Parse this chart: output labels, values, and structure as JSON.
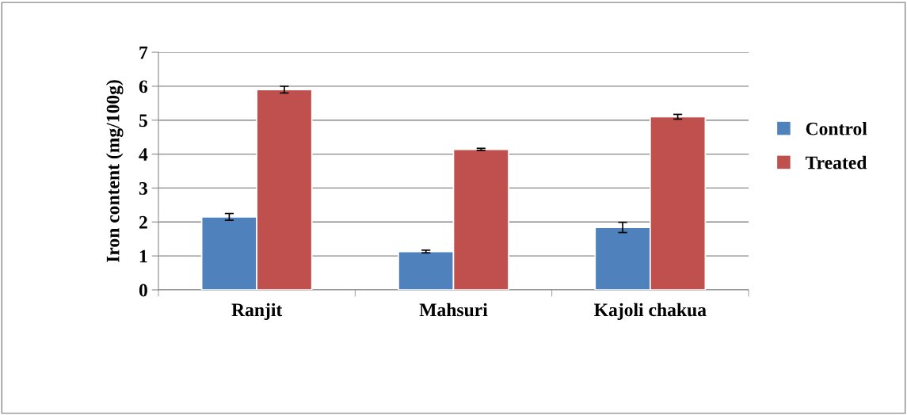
{
  "chart_data": {
    "type": "bar",
    "ylabel": "Iron content (mg/100g)",
    "categories": [
      "Ranjit",
      "Mahsuri",
      "Kajoli chakua"
    ],
    "series": [
      {
        "name": "Control",
        "color": "#4f81bd",
        "values": [
          2.15,
          1.13,
          1.84
        ],
        "errors": [
          0.1,
          0.04,
          0.15
        ]
      },
      {
        "name": "Treated",
        "color": "#c0504d",
        "values": [
          5.9,
          4.14,
          5.1
        ],
        "errors": [
          0.1,
          0.03,
          0.07
        ]
      }
    ],
    "ylim": [
      0,
      7
    ],
    "yticks": [
      0,
      1,
      2,
      3,
      4,
      5,
      6,
      7
    ],
    "grid": "y",
    "legend": "right"
  }
}
